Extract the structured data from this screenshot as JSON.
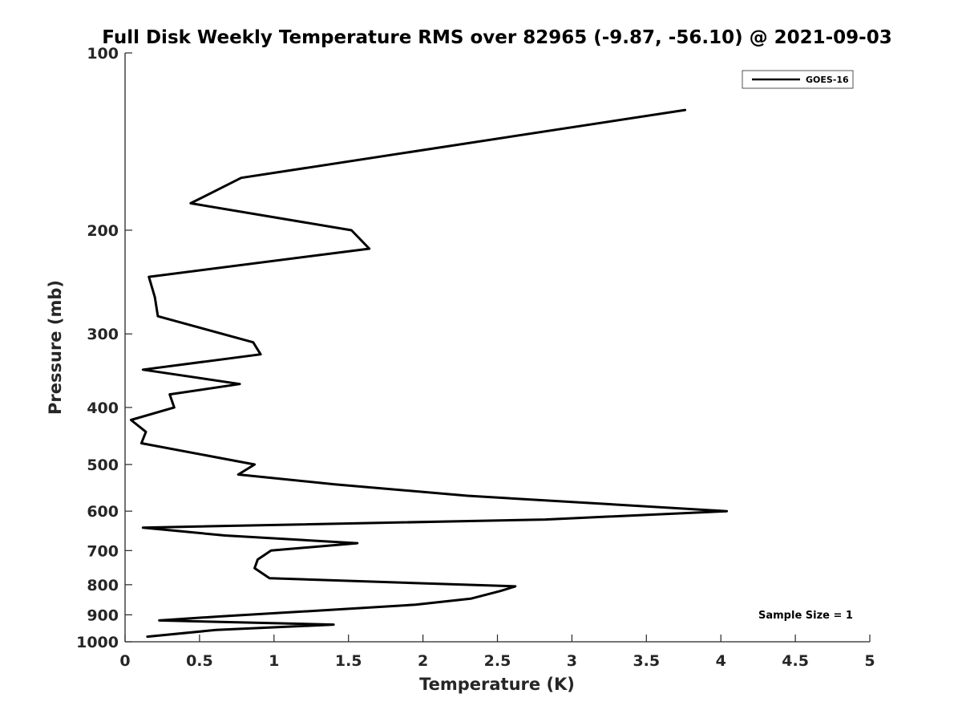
{
  "chart_data": {
    "type": "line",
    "title": "Full Disk Weekly Temperature RMS over 82965 (-9.87, -56.10) @ 2021-09-03",
    "xlabel": "Temperature (K)",
    "ylabel": "Pressure (mb)",
    "xlim": [
      0,
      5
    ],
    "ylim": [
      100,
      1000
    ],
    "y_scale": "log",
    "y_reversed": true,
    "x_ticks": [
      0,
      0.5,
      1,
      1.5,
      2,
      2.5,
      3,
      3.5,
      4,
      4.5,
      5
    ],
    "x_tick_labels": [
      "0",
      "0.5",
      "1",
      "1.5",
      "2",
      "2.5",
      "3",
      "3.5",
      "4",
      "4.5",
      "5"
    ],
    "y_ticks": [
      100,
      200,
      300,
      400,
      500,
      600,
      700,
      800,
      900,
      1000
    ],
    "y_tick_labels": [
      "100",
      "200",
      "300",
      "400",
      "500",
      "600",
      "700",
      "800",
      "900",
      "1000"
    ],
    "grid": false,
    "legend_position": "top-right",
    "series": [
      {
        "name": "GOES-16",
        "color": "#000000",
        "points": [
          {
            "x": 3.76,
            "y": 125
          },
          {
            "x": 0.78,
            "y": 163
          },
          {
            "x": 0.44,
            "y": 180
          },
          {
            "x": 1.52,
            "y": 200
          },
          {
            "x": 1.64,
            "y": 215
          },
          {
            "x": 0.16,
            "y": 240
          },
          {
            "x": 0.2,
            "y": 260
          },
          {
            "x": 0.22,
            "y": 280
          },
          {
            "x": 0.86,
            "y": 310
          },
          {
            "x": 0.91,
            "y": 325
          },
          {
            "x": 0.12,
            "y": 345
          },
          {
            "x": 0.77,
            "y": 365
          },
          {
            "x": 0.3,
            "y": 380
          },
          {
            "x": 0.33,
            "y": 400
          },
          {
            "x": 0.04,
            "y": 420
          },
          {
            "x": 0.14,
            "y": 440
          },
          {
            "x": 0.11,
            "y": 460
          },
          {
            "x": 0.87,
            "y": 500
          },
          {
            "x": 0.76,
            "y": 520
          },
          {
            "x": 1.4,
            "y": 540
          },
          {
            "x": 2.3,
            "y": 565
          },
          {
            "x": 4.04,
            "y": 600
          },
          {
            "x": 2.82,
            "y": 620
          },
          {
            "x": 0.12,
            "y": 640
          },
          {
            "x": 0.67,
            "y": 660
          },
          {
            "x": 1.56,
            "y": 680
          },
          {
            "x": 0.98,
            "y": 700
          },
          {
            "x": 0.89,
            "y": 725
          },
          {
            "x": 0.87,
            "y": 750
          },
          {
            "x": 0.97,
            "y": 780
          },
          {
            "x": 2.62,
            "y": 805
          },
          {
            "x": 2.52,
            "y": 820
          },
          {
            "x": 2.32,
            "y": 845
          },
          {
            "x": 1.95,
            "y": 865
          },
          {
            "x": 1.3,
            "y": 885
          },
          {
            "x": 0.65,
            "y": 905
          },
          {
            "x": 0.23,
            "y": 920
          },
          {
            "x": 1.4,
            "y": 935
          },
          {
            "x": 0.61,
            "y": 955
          },
          {
            "x": 0.15,
            "y": 980
          }
        ]
      }
    ],
    "annotations": [
      "Sample Size = 1"
    ]
  }
}
